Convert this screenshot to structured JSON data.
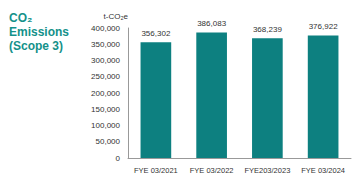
{
  "chart_data": {
    "type": "bar",
    "title": "CO₂\nEmissions\n(Scope 3)",
    "y_label": "t-CO₂e",
    "categories": [
      "FYE 03/2021",
      "FYE 03/2022",
      "FYE203/2023",
      "FYE 03/2024"
    ],
    "values": [
      356302,
      386083,
      368239,
      376922
    ],
    "value_labels": [
      "356,302",
      "386,083",
      "368,239",
      "376,922"
    ],
    "color": "#0d8080",
    "ylim": [
      0,
      400000
    ],
    "yticks": [
      0,
      {
        "value": 50000,
        "label": "50,000"
      },
      {
        "value": 100000,
        "label": "100,000"
      },
      {
        "value": 150000,
        "label": "150,000"
      },
      {
        "value": 200000,
        "label": "200,000"
      },
      {
        "value": 250000,
        "label": "250,000"
      },
      {
        "value": 300000,
        "label": "300,000"
      },
      {
        "value": 350000,
        "label": "350,000"
      },
      {
        "value": 400000,
        "label": "400,000"
      }
    ],
    "grid": false,
    "data_labels": true
  }
}
